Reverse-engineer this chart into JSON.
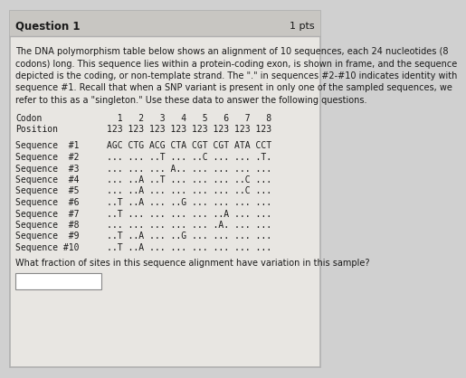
{
  "title": "Question 1",
  "pts": "1 pts",
  "paragraph_lines": [
    "The DNA polymorphism table below shows an alignment of 10 sequences, each 24 nucleotides (8",
    "codons) long. This sequence lies within a protein-coding exon, is shown in frame, and the sequence",
    "depicted is the coding, or non-template strand. The \".\" in sequences #2-#10 indicates identity with",
    "sequence #1. Recall that when a SNP variant is present in only one of the sampled sequences, we",
    "refer to this as a \"singleton.\" Use these data to answer the following questions."
  ],
  "codon_label": "Codon",
  "position_label": "Position",
  "codon_numbers": "  1   2   3   4   5   6   7   8",
  "position_numbers": "123 123 123 123 123 123 123 123",
  "sequences": [
    {
      "label": "Sequence  #1",
      "data": "AGC CTG ACG CTA CGT CGT ATA CCT"
    },
    {
      "label": "Sequence  #2",
      "data": "... ... ..T ... ..C ... ... .T."
    },
    {
      "label": "Sequence  #3",
      "data": "... ... ... A.. ... ... ... ..."
    },
    {
      "label": "Sequence  #4",
      "data": "... ..A ..T ... ... ... ..C ..."
    },
    {
      "label": "Sequence  #5",
      "data": "... ..A ... ... ... ... ..C ..."
    },
    {
      "label": "Sequence  #6",
      "data": "..T ..A ... ..G ... ... ... ..."
    },
    {
      "label": "Sequence  #7",
      "data": "..T ... ... ... ... ..A ... ..."
    },
    {
      "label": "Sequence  #8",
      "data": "... ... ... ... ... .A. ... ..."
    },
    {
      "label": "Sequence  #9",
      "data": "..T ..A ... ..G ... ... ... ..."
    },
    {
      "label": "Sequence #10",
      "data": "..T ..A ... ... ... ... ... ..."
    }
  ],
  "question": "What fraction of sites in this sequence alignment have variation in this sample?",
  "outer_bg": "#d0d0d0",
  "inner_bg": "#e8e6e2",
  "title_bg": "#c8c6c2",
  "text_color": "#1a1a1a",
  "border_color": "#b0b0b0"
}
